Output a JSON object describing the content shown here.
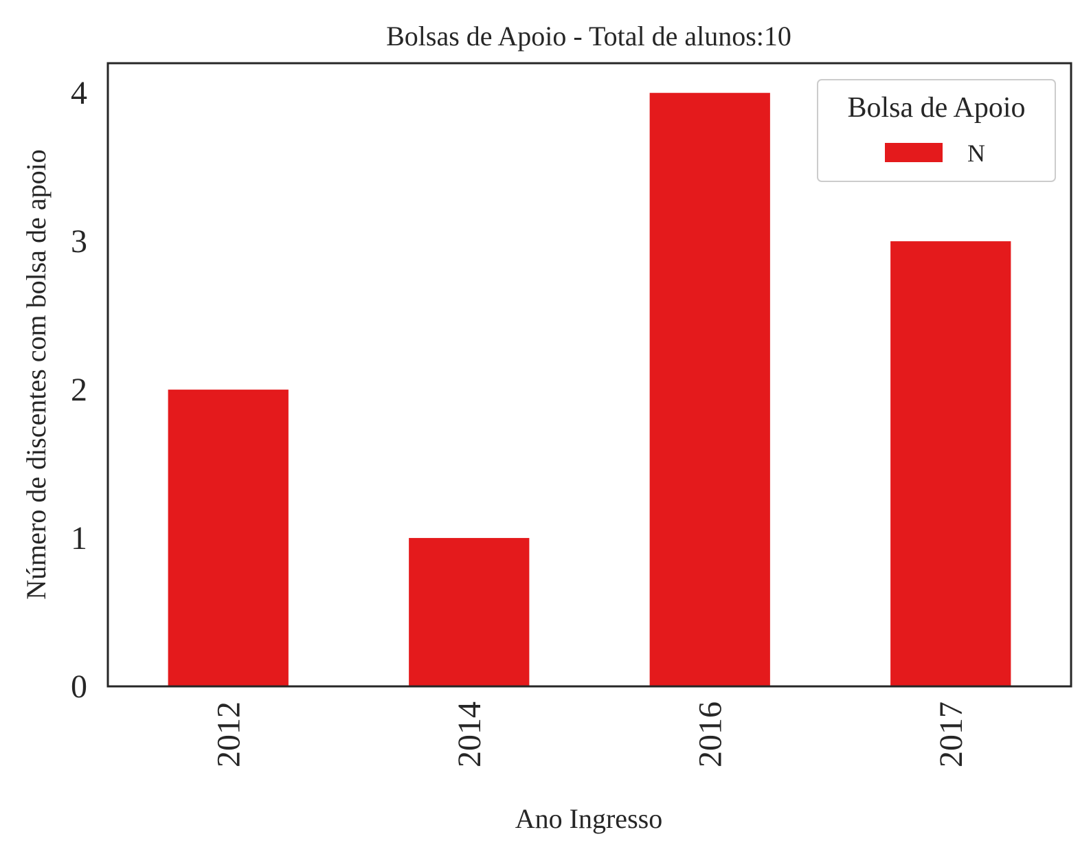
{
  "chart_data": {
    "type": "bar",
    "title": "Bolsas de Apoio - Total de alunos:10",
    "xlabel": "Ano Ingresso",
    "ylabel": "Número de discentes com bolsa de apoio",
    "categories": [
      "2012",
      "2014",
      "2016",
      "2017"
    ],
    "series": [
      {
        "name": "N",
        "values": [
          2,
          1,
          4,
          3
        ],
        "color": "#e41a1c"
      }
    ],
    "ylim": [
      0,
      4.2
    ],
    "yticks": [
      "0",
      "1",
      "2",
      "3",
      "4"
    ],
    "legend": {
      "title": "Bolsa de Apoio",
      "placement": "top-right"
    },
    "grid": false
  }
}
